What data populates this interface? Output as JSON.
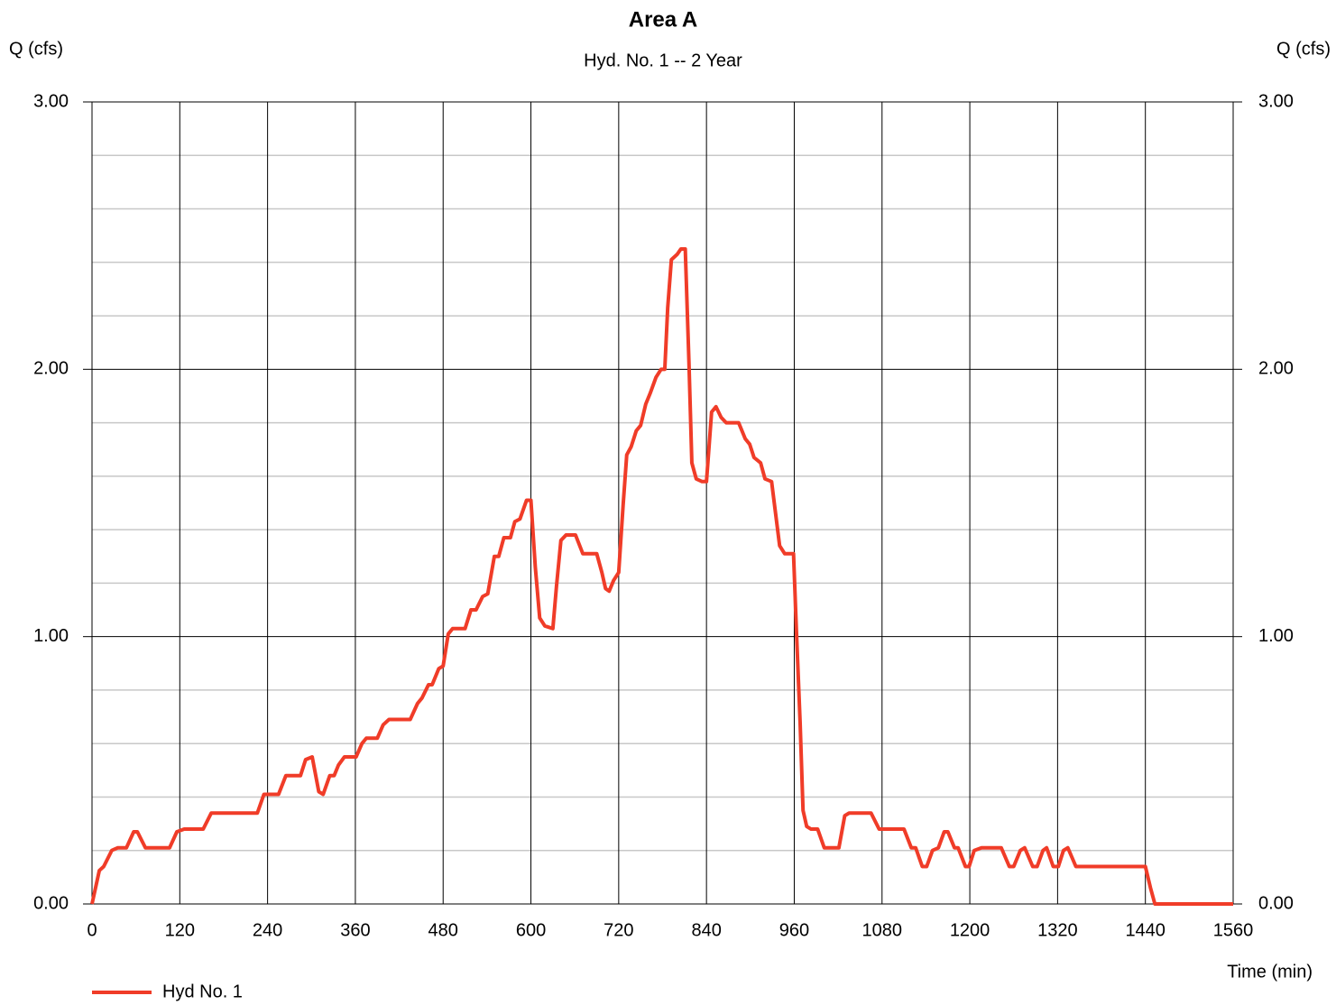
{
  "chart_data": {
    "type": "line",
    "title": "Area A",
    "subtitle": "Hyd. No. 1 -- 2 Year",
    "ylabel": "Q (cfs)",
    "y2label": "Q (cfs)",
    "xlabel": "Time (min)",
    "xlim": [
      0,
      1560
    ],
    "xticks": [
      0,
      120,
      240,
      360,
      480,
      600,
      720,
      840,
      960,
      1080,
      1200,
      1320,
      1440,
      1560
    ],
    "ylim": [
      0,
      3
    ],
    "yticks": [
      {
        "value": 0,
        "label": "0.00"
      },
      {
        "value": 1,
        "label": "1.00"
      },
      {
        "value": 2,
        "label": "2.00"
      },
      {
        "value": 3,
        "label": "3.00"
      }
    ],
    "y2lim": [
      0,
      3
    ],
    "y2ticks": [
      {
        "value": 0,
        "label": "0.00"
      },
      {
        "value": 1,
        "label": "1.00"
      },
      {
        "value": 2,
        "label": "2.00"
      },
      {
        "value": 3,
        "label": "3.00"
      }
    ],
    "yminorticks": [
      0.2,
      0.4,
      0.6,
      0.8,
      1.2,
      1.4,
      1.6,
      1.8,
      2.2,
      2.4,
      2.6,
      2.8
    ],
    "grid": true,
    "legend": "bottom-left",
    "series": [
      {
        "name": "Hyd No. 1",
        "color": "#f03c28",
        "x": [
          0,
          10,
          16,
          27,
          35,
          47,
          57,
          62,
          73,
          106,
          116,
          126,
          152,
          163,
          226,
          235,
          255,
          265,
          285,
          292,
          301,
          310,
          316,
          325,
          331,
          337,
          345,
          361,
          369,
          375,
          390,
          398,
          406,
          435,
          445,
          451,
          460,
          465,
          474,
          480,
          487,
          493,
          510,
          518,
          525,
          534,
          541,
          550,
          556,
          563,
          572,
          578,
          585,
          594,
          600,
          606,
          612,
          619,
          630,
          635,
          641,
          648,
          661,
          671,
          690,
          697,
          702,
          707,
          713,
          720,
          726,
          731,
          737,
          744,
          750,
          757,
          763,
          771,
          778,
          783,
          787,
          792,
          800,
          805,
          811,
          816,
          820,
          826,
          834,
          840,
          847,
          853,
          860,
          867,
          876,
          884,
          893,
          899,
          905,
          914,
          920,
          929,
          940,
          947,
          959,
          963,
          968,
          972,
          977,
          983,
          992,
          1001,
          1021,
          1029,
          1035,
          1065,
          1076,
          1110,
          1120,
          1126,
          1135,
          1141,
          1149,
          1157,
          1165,
          1170,
          1179,
          1184,
          1194,
          1199,
          1206,
          1216,
          1243,
          1254,
          1260,
          1269,
          1275,
          1286,
          1292,
          1300,
          1305,
          1314,
          1321,
          1328,
          1334,
          1345,
          1440,
          1447,
          1453,
          1560
        ],
        "values": [
          0,
          0.125,
          0.14,
          0.2,
          0.21,
          0.21,
          0.27,
          0.27,
          0.21,
          0.21,
          0.27,
          0.28,
          0.28,
          0.34,
          0.34,
          0.41,
          0.41,
          0.48,
          0.48,
          0.54,
          0.55,
          0.42,
          0.41,
          0.48,
          0.48,
          0.52,
          0.55,
          0.55,
          0.6,
          0.62,
          0.62,
          0.67,
          0.69,
          0.69,
          0.75,
          0.77,
          0.82,
          0.82,
          0.88,
          0.89,
          1.01,
          1.03,
          1.03,
          1.1,
          1.1,
          1.15,
          1.16,
          1.3,
          1.3,
          1.37,
          1.37,
          1.43,
          1.44,
          1.51,
          1.51,
          1.26,
          1.07,
          1.04,
          1.03,
          1.19,
          1.36,
          1.38,
          1.38,
          1.31,
          1.31,
          1.24,
          1.18,
          1.17,
          1.21,
          1.24,
          1.49,
          1.68,
          1.71,
          1.77,
          1.79,
          1.87,
          1.91,
          1.97,
          2.0,
          2.0,
          2.23,
          2.41,
          2.43,
          2.45,
          2.45,
          2.03,
          1.65,
          1.59,
          1.58,
          1.58,
          1.84,
          1.86,
          1.82,
          1.8,
          1.8,
          1.8,
          1.74,
          1.72,
          1.67,
          1.65,
          1.59,
          1.58,
          1.34,
          1.31,
          1.31,
          1.02,
          0.68,
          0.35,
          0.29,
          0.28,
          0.28,
          0.21,
          0.21,
          0.33,
          0.34,
          0.34,
          0.28,
          0.28,
          0.21,
          0.21,
          0.14,
          0.14,
          0.2,
          0.21,
          0.27,
          0.27,
          0.21,
          0.21,
          0.14,
          0.14,
          0.2,
          0.21,
          0.21,
          0.14,
          0.14,
          0.2,
          0.21,
          0.14,
          0.14,
          0.2,
          0.21,
          0.14,
          0.14,
          0.2,
          0.21,
          0.14,
          0.14,
          0.06,
          0,
          0
        ]
      }
    ]
  }
}
